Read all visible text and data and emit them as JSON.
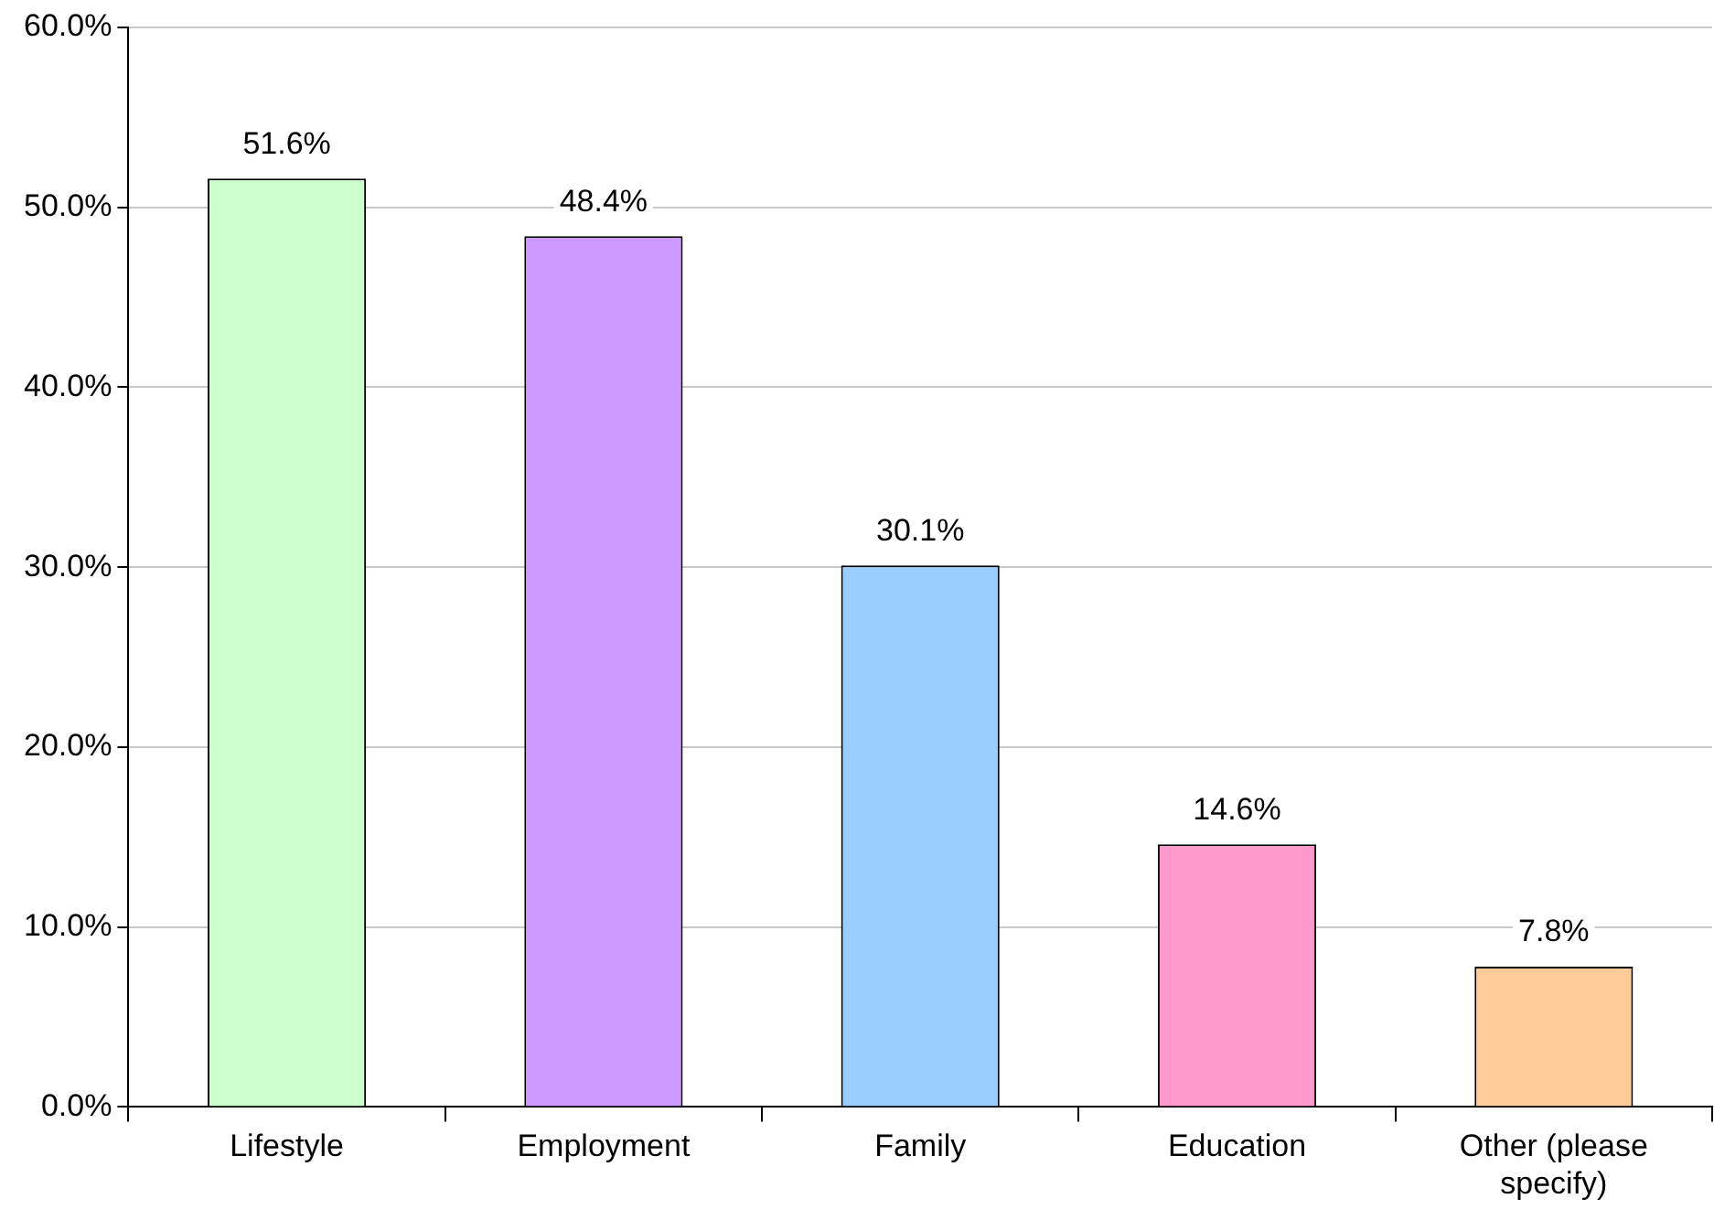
{
  "chart_data": {
    "type": "bar",
    "categories": [
      "Lifestyle",
      "Employment",
      "Family",
      "Education",
      "Other (please specify)"
    ],
    "values": [
      51.6,
      48.4,
      30.1,
      14.6,
      7.8
    ],
    "colors": [
      "#ccffcc",
      "#cc99ff",
      "#99ccff",
      "#ff99cc",
      "#ffcc99"
    ],
    "value_labels": [
      "51.6%",
      "48.4%",
      "30.1%",
      "14.6%",
      "7.8%"
    ],
    "ylim": [
      0,
      60
    ],
    "yticks": [
      {
        "value": 0,
        "label": "0.0%"
      },
      {
        "value": 10,
        "label": "10.0%"
      },
      {
        "value": 20,
        "label": "20.0%"
      },
      {
        "value": 30,
        "label": "30.0%"
      },
      {
        "value": 40,
        "label": "40.0%"
      },
      {
        "value": 50,
        "label": "50.0%"
      },
      {
        "value": 60,
        "label": "60.0%"
      }
    ],
    "grid": "y",
    "legend": false
  }
}
